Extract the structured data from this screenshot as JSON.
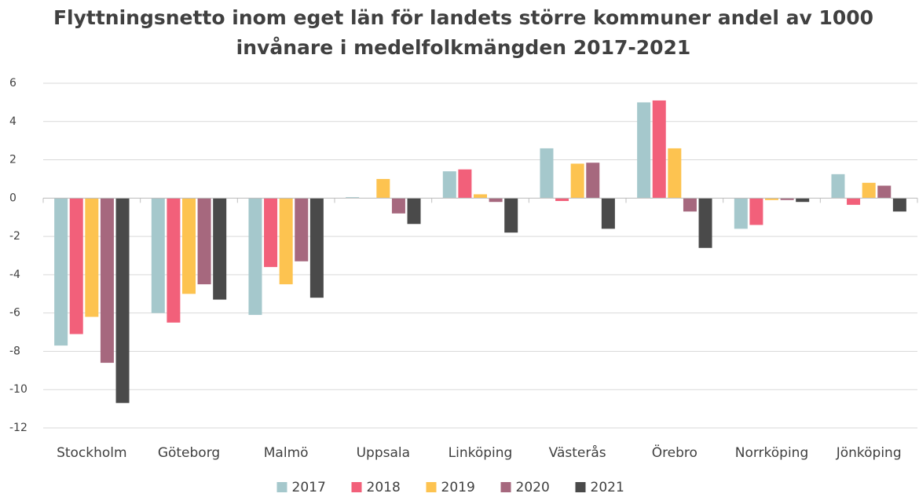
{
  "chart_data": {
    "type": "bar",
    "title": [
      "Flyttningsnetto inom eget län för landets större kommuner andel av 1000",
      "invånare i medelfolkmängden 2017-2021"
    ],
    "categories": [
      "Stockholm",
      "Göteborg",
      "Malmö",
      "Uppsala",
      "Linköping",
      "Västerås",
      "Örebro",
      "Norrköping",
      "Jönköping"
    ],
    "series": [
      {
        "name": "2017",
        "color": "#a5c8cc",
        "values": [
          -7.7,
          -6.0,
          -6.1,
          0.05,
          1.4,
          2.6,
          5.0,
          -1.6,
          1.25
        ]
      },
      {
        "name": "2018",
        "color": "#f2607a",
        "values": [
          -7.1,
          -6.5,
          -3.6,
          0.0,
          1.5,
          -0.15,
          5.1,
          -1.4,
          -0.35
        ]
      },
      {
        "name": "2019",
        "color": "#fdc350",
        "values": [
          -6.2,
          -5.0,
          -4.5,
          1.0,
          0.2,
          1.8,
          2.6,
          -0.1,
          0.8
        ]
      },
      {
        "name": "2020",
        "color": "#a6687e",
        "values": [
          -8.6,
          -4.5,
          -3.3,
          -0.8,
          -0.2,
          1.85,
          -0.7,
          -0.1,
          0.65
        ]
      },
      {
        "name": "2021",
        "color": "#4a4a4a",
        "values": [
          -10.7,
          -5.3,
          -5.2,
          -1.35,
          -1.8,
          -1.6,
          -2.6,
          -0.2,
          -0.7
        ]
      }
    ],
    "ylim": [
      -12,
      6
    ],
    "yticks": [
      -12,
      -10,
      -8,
      -6,
      -4,
      -2,
      0,
      2,
      4,
      6
    ],
    "grid": true,
    "legend": "bottom"
  }
}
